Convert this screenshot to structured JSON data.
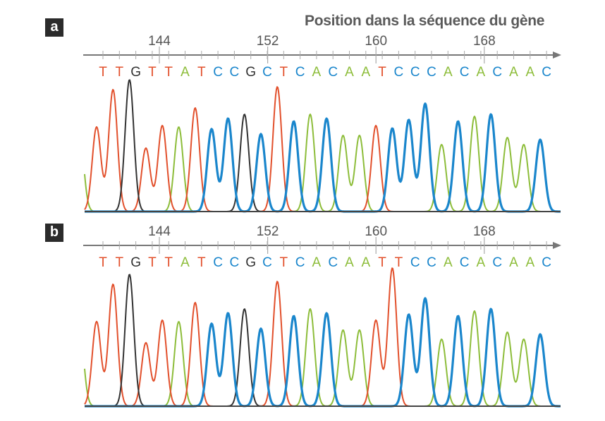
{
  "title": "Position dans la séquence du gène",
  "colors": {
    "T": "#e2502c",
    "G": "#333333",
    "A": "#8dbd3a",
    "C": "#1a86cc",
    "axis": "#777777"
  },
  "chart_data": {
    "type": "chromatogram",
    "axis_ticks": [
      144,
      152,
      160,
      168
    ],
    "panels": [
      {
        "label": "a",
        "sequence": "TTGTTATCCGCTCACAATCCCACACAAC",
        "leading_peak": {
          "base": "A",
          "intensity": 122
        },
        "intensities": [
          120,
          173,
          187,
          90,
          122,
          120,
          147,
          117,
          132,
          138,
          110,
          177,
          128,
          138,
          132,
          108,
          108,
          122,
          118,
          130,
          153,
          95,
          128,
          135,
          138,
          105,
          95,
          102
        ]
      },
      {
        "label": "b",
        "sequence": "TTGTTATTCGCTCACAATTCCACACAAC",
        "leading_peak": {
          "base": "A",
          "intensity": 122
        },
        "intensities": [
          120,
          173,
          187,
          90,
          122,
          120,
          147,
          117,
          132,
          138,
          110,
          177,
          128,
          138,
          132,
          108,
          108,
          122,
          196,
          130,
          153,
          95,
          128,
          135,
          138,
          105,
          95,
          102
        ]
      }
    ]
  }
}
